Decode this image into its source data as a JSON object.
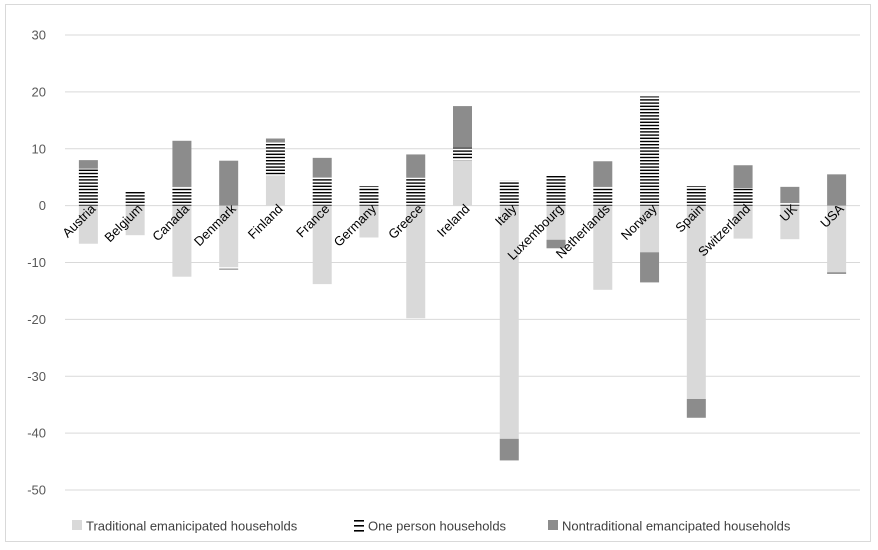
{
  "chart_data": {
    "type": "bar",
    "stacked": true,
    "categories": [
      "Austria",
      "Belgium",
      "Canada",
      "Denmark",
      "Finland",
      "France",
      "Germany",
      "Greece",
      "Ireland",
      "Italy",
      "Luxembourg",
      "Netherlands",
      "Norway",
      "Spain",
      "Switzerland",
      "UK",
      "USA"
    ],
    "series": [
      {
        "name": "Traditional emanicipated households",
        "values": [
          -6.7,
          -5.2,
          -12.5,
          -10.8,
          5.3,
          -13.8,
          -5.6,
          -19.8,
          8.0,
          -41.0,
          -6.0,
          -14.8,
          -8.2,
          -34.0,
          -5.8,
          -5.9,
          -11.8
        ],
        "color": "#d9d9d9",
        "pattern": "solid"
      },
      {
        "name": "One person households",
        "values": [
          6.5,
          2.4,
          3.3,
          -0.4,
          5.8,
          5.0,
          3.4,
          4.9,
          2.2,
          4.4,
          5.4,
          3.3,
          19.2,
          3.4,
          3.1,
          0.5,
          -0.4
        ],
        "color": "#ffffff",
        "pattern": "horizontal-stripes"
      },
      {
        "name": "Nontraditional emancipated households",
        "values": [
          1.5,
          0,
          8.1,
          7.9,
          0.7,
          3.4,
          0,
          4.1,
          7.3,
          -3.8,
          -1.5,
          4.5,
          -5.3,
          -3.3,
          4.0,
          2.8,
          5.5
        ],
        "color": "#8c8c8c",
        "pattern": "solid"
      }
    ],
    "y_ticks": [
      "30",
      "20",
      "10",
      "0",
      "-10",
      "-20",
      "-30",
      "-40",
      "-50"
    ],
    "ylim": [
      -50,
      30
    ],
    "y_step": 10,
    "grid": true,
    "legend_position": "bottom",
    "title": "",
    "xlabel": "",
    "ylabel": ""
  }
}
